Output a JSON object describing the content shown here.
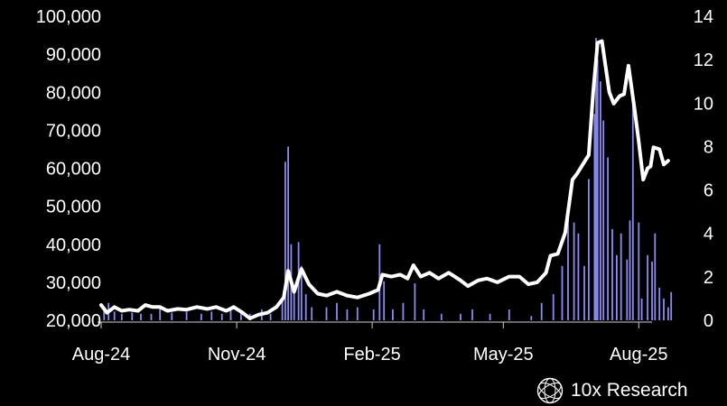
{
  "brand": {
    "name": "10x Research",
    "logo_icon": "globe-lattice-icon"
  },
  "chart_data": {
    "type": "bar+line",
    "left_axis": {
      "ticks": [
        "20,000",
        "30,000",
        "40,000",
        "50,000",
        "60,000",
        "70,000",
        "80,000",
        "90,000",
        "100,000"
      ],
      "ylim": [
        20000,
        100000
      ]
    },
    "right_axis": {
      "ticks": [
        "0",
        "2",
        "4",
        "6",
        "8",
        "10",
        "12",
        "14"
      ],
      "ylim": [
        0,
        14
      ]
    },
    "x_ticks": [
      "Aug-24",
      "Nov-24",
      "Feb-25",
      "May-25",
      "Aug-25"
    ],
    "x_range": [
      "2024-08-01",
      "2025-08-10"
    ],
    "colors": {
      "line": "#ffffff",
      "bars": "#8c8cf0",
      "background": "#000000"
    },
    "line_series": {
      "axis": "left",
      "points": [
        [
          "2024-08-01",
          24000
        ],
        [
          "2024-08-05",
          22000
        ],
        [
          "2024-08-10",
          23500
        ],
        [
          "2024-08-15",
          22500
        ],
        [
          "2024-08-20",
          22800
        ],
        [
          "2024-08-26",
          22500
        ],
        [
          "2024-08-31",
          24000
        ],
        [
          "2024-09-05",
          23500
        ],
        [
          "2024-09-10",
          23500
        ],
        [
          "2024-09-15",
          22500
        ],
        [
          "2024-09-22",
          23000
        ],
        [
          "2024-09-28",
          22800
        ],
        [
          "2024-10-05",
          23500
        ],
        [
          "2024-10-12",
          23000
        ],
        [
          "2024-10-18",
          23500
        ],
        [
          "2024-10-25",
          22500
        ],
        [
          "2024-10-30",
          23500
        ],
        [
          "2024-11-05",
          22000
        ],
        [
          "2024-11-10",
          20500
        ],
        [
          "2024-11-16",
          21500
        ],
        [
          "2024-11-22",
          22000
        ],
        [
          "2024-11-28",
          23500
        ],
        [
          "2024-12-03",
          26000
        ],
        [
          "2024-12-06",
          33000
        ],
        [
          "2024-12-10",
          27500
        ],
        [
          "2024-12-15",
          33500
        ],
        [
          "2024-12-20",
          29500
        ],
        [
          "2024-12-26",
          27000
        ],
        [
          "2025-01-01",
          26500
        ],
        [
          "2025-01-08",
          27500
        ],
        [
          "2025-01-15",
          26500
        ],
        [
          "2025-01-22",
          26000
        ],
        [
          "2025-01-30",
          27000
        ],
        [
          "2025-02-05",
          28000
        ],
        [
          "2025-02-08",
          32000
        ],
        [
          "2025-02-14",
          31500
        ],
        [
          "2025-02-20",
          32000
        ],
        [
          "2025-02-25",
          31000
        ],
        [
          "2025-03-01",
          34500
        ],
        [
          "2025-03-06",
          31500
        ],
        [
          "2025-03-12",
          32500
        ],
        [
          "2025-03-18",
          31000
        ],
        [
          "2025-03-25",
          32500
        ],
        [
          "2025-04-02",
          30500
        ],
        [
          "2025-04-07",
          29000
        ],
        [
          "2025-04-14",
          30500
        ],
        [
          "2025-04-20",
          31000
        ],
        [
          "2025-04-27",
          30000
        ],
        [
          "2025-05-05",
          31500
        ],
        [
          "2025-05-12",
          31500
        ],
        [
          "2025-05-18",
          29500
        ],
        [
          "2025-05-24",
          30000
        ],
        [
          "2025-05-30",
          32500
        ],
        [
          "2025-06-02",
          37000
        ],
        [
          "2025-06-07",
          37500
        ],
        [
          "2025-06-12",
          43000
        ],
        [
          "2025-06-17",
          57000
        ],
        [
          "2025-06-20",
          58500
        ],
        [
          "2025-06-24",
          61000
        ],
        [
          "2025-06-28",
          63500
        ],
        [
          "2025-07-01",
          80000
        ],
        [
          "2025-07-04",
          93000
        ],
        [
          "2025-07-07",
          93500
        ],
        [
          "2025-07-12",
          80000
        ],
        [
          "2025-07-15",
          77000
        ],
        [
          "2025-07-19",
          79000
        ],
        [
          "2025-07-22",
          79500
        ],
        [
          "2025-07-25",
          87000
        ],
        [
          "2025-07-29",
          76000
        ],
        [
          "2025-08-01",
          67000
        ],
        [
          "2025-08-04",
          57000
        ],
        [
          "2025-08-07",
          60000
        ],
        [
          "2025-08-09",
          60500
        ],
        [
          "2025-08-11",
          65500
        ],
        [
          "2025-08-15",
          65000
        ],
        [
          "2025-08-18",
          61000
        ],
        [
          "2025-08-21",
          62000
        ]
      ]
    },
    "bar_series": {
      "axis": "right",
      "points": [
        [
          "2024-08-03",
          0.5
        ],
        [
          "2024-08-06",
          0.8
        ],
        [
          "2024-08-10",
          0.4
        ],
        [
          "2024-08-15",
          0.3
        ],
        [
          "2024-08-22",
          0.35
        ],
        [
          "2024-08-28",
          0.3
        ],
        [
          "2024-09-04",
          0.3
        ],
        [
          "2024-09-10",
          0.6
        ],
        [
          "2024-09-18",
          0.35
        ],
        [
          "2024-09-28",
          0.4
        ],
        [
          "2024-10-08",
          0.3
        ],
        [
          "2024-10-15",
          0.4
        ],
        [
          "2024-10-22",
          0.3
        ],
        [
          "2024-10-28",
          0.6
        ],
        [
          "2024-11-04",
          0.4
        ],
        [
          "2024-11-10",
          0.3
        ],
        [
          "2024-11-18",
          0.5
        ],
        [
          "2024-11-24",
          0.3
        ],
        [
          "2024-12-02",
          1.0
        ],
        [
          "2024-12-04",
          7.3
        ],
        [
          "2024-12-06",
          8.0
        ],
        [
          "2024-12-08",
          3.5
        ],
        [
          "2024-12-10",
          1.5
        ],
        [
          "2024-12-13",
          3.6
        ],
        [
          "2024-12-15",
          2.5
        ],
        [
          "2024-12-18",
          1.2
        ],
        [
          "2024-12-22",
          0.6
        ],
        [
          "2025-01-01",
          0.6
        ],
        [
          "2025-01-08",
          0.8
        ],
        [
          "2025-01-15",
          0.5
        ],
        [
          "2025-01-22",
          0.6
        ],
        [
          "2025-02-02",
          0.5
        ],
        [
          "2025-02-06",
          3.5
        ],
        [
          "2025-02-09",
          1.8
        ],
        [
          "2025-02-15",
          0.5
        ],
        [
          "2025-02-22",
          0.8
        ],
        [
          "2025-03-02",
          1.7
        ],
        [
          "2025-03-08",
          0.5
        ],
        [
          "2025-03-20",
          0.3
        ],
        [
          "2025-04-02",
          0.3
        ],
        [
          "2025-04-10",
          0.5
        ],
        [
          "2025-04-22",
          0.3
        ],
        [
          "2025-05-05",
          0.5
        ],
        [
          "2025-05-20",
          0.2
        ],
        [
          "2025-05-27",
          0.8
        ],
        [
          "2025-06-04",
          1.2
        ],
        [
          "2025-06-10",
          2.5
        ],
        [
          "2025-06-14",
          5.0
        ],
        [
          "2025-06-18",
          4.5
        ],
        [
          "2025-06-21",
          4.0
        ],
        [
          "2025-06-25",
          2.5
        ],
        [
          "2025-06-28",
          6.5
        ],
        [
          "2025-07-02",
          9.5
        ],
        [
          "2025-07-03",
          13.0
        ],
        [
          "2025-07-04",
          12.0
        ],
        [
          "2025-07-06",
          11.0
        ],
        [
          "2025-07-08",
          9.2
        ],
        [
          "2025-07-11",
          7.5
        ],
        [
          "2025-07-14",
          4.2
        ],
        [
          "2025-07-17",
          3.0
        ],
        [
          "2025-07-20",
          4.0
        ],
        [
          "2025-07-24",
          2.8
        ],
        [
          "2025-07-26",
          4.6
        ],
        [
          "2025-07-28",
          10.1
        ],
        [
          "2025-08-01",
          4.5
        ],
        [
          "2025-08-03",
          1.0
        ],
        [
          "2025-08-07",
          3.0
        ],
        [
          "2025-08-10",
          2.7
        ],
        [
          "2025-08-12",
          4.0
        ],
        [
          "2025-08-15",
          1.5
        ],
        [
          "2025-08-18",
          1.0
        ],
        [
          "2025-08-21",
          0.6
        ],
        [
          "2025-08-23",
          1.3
        ]
      ]
    }
  }
}
